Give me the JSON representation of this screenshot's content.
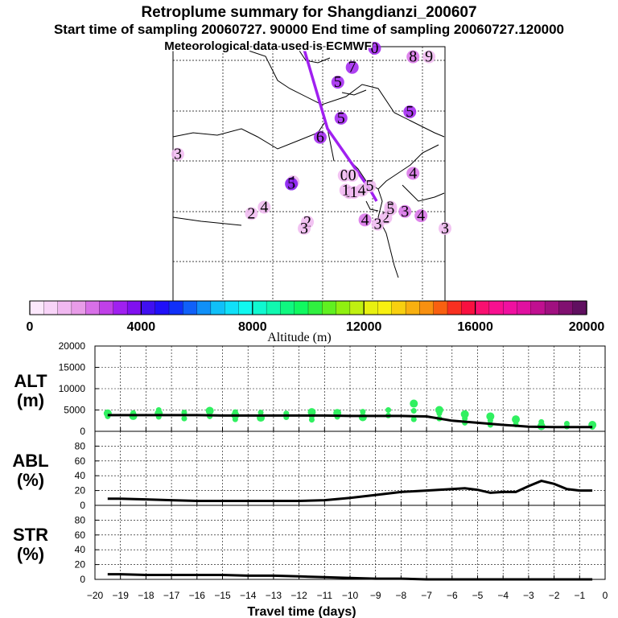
{
  "title": {
    "line1": "Retroplume summary for Shangdianzi_200607",
    "line2": "Start time of sampling 20060727. 90000     End time of sampling 20060727.120000",
    "line3": "Meteorological data used is ECMWF"
  },
  "colorbar": {
    "label": "Altitude  (m)",
    "min": 0,
    "max": 20000,
    "ticks": [
      0,
      4000,
      8000,
      12000,
      16000,
      20000
    ],
    "colors": [
      "#fce8fc",
      "#f8d4f8",
      "#f0b8f0",
      "#e89ce8",
      "#d870e8",
      "#c040e8",
      "#a020f0",
      "#8010f0",
      "#4010f0",
      "#2010f8",
      "#1030f8",
      "#1060f8",
      "#1090f8",
      "#10c0f8",
      "#10e0f8",
      "#10f8f0",
      "#10f8d0",
      "#10f8b0",
      "#10f880",
      "#10f860",
      "#30f040",
      "#60f020",
      "#90f010",
      "#c0f010",
      "#e8f010",
      "#f8f010",
      "#f8d010",
      "#f8b010",
      "#f89010",
      "#f86010",
      "#f83020",
      "#f81040",
      "#f81070",
      "#f81090",
      "#f010a0",
      "#e010a0",
      "#c01090",
      "#a01080",
      "#801070",
      "#601060"
    ]
  },
  "map": {
    "markers": [
      {
        "label": "0",
        "lon": 118.6,
        "lat": 48.0,
        "color": "#a020f0"
      },
      {
        "label": "1",
        "lon": 117.0,
        "lat": 41.2,
        "color": "#f0b8f0"
      },
      {
        "label": "1",
        "lon": 113.5,
        "lat": 41.7,
        "color": "#f0b8f0"
      },
      {
        "label": "1",
        "lon": 116.8,
        "lat": 41.3,
        "color": "#f0b8f0"
      },
      {
        "label": "1",
        "lon": 117.3,
        "lat": 41.2,
        "color": "#f0b8f0"
      },
      {
        "label": "2",
        "lon": 110.9,
        "lat": 40.2,
        "color": "#f0b8f0"
      },
      {
        "label": "2",
        "lon": 114.4,
        "lat": 39.8,
        "color": "#f0b8f0"
      },
      {
        "label": "2",
        "lon": 119.6,
        "lat": 40.5,
        "color": "#f0b8f0"
      },
      {
        "label": "2",
        "lon": 119.3,
        "lat": 40.0,
        "color": "#f0b8f0"
      },
      {
        "label": "3",
        "lon": 106.3,
        "lat": 43.0,
        "color": "#f0b8f0"
      },
      {
        "label": "3",
        "lon": 114.2,
        "lat": 39.5,
        "color": "#f0b8f0"
      },
      {
        "label": "3",
        "lon": 120.5,
        "lat": 40.3,
        "color": "#d870e8"
      },
      {
        "label": "3",
        "lon": 123.0,
        "lat": 39.5,
        "color": "#f0b8f0"
      },
      {
        "label": "3",
        "lon": 118.8,
        "lat": 39.7,
        "color": "#f0b8f0"
      },
      {
        "label": "4",
        "lon": 111.7,
        "lat": 40.5,
        "color": "#f0b8f0"
      },
      {
        "label": "4",
        "lon": 118.0,
        "lat": 39.9,
        "color": "#d870e8"
      },
      {
        "label": "4",
        "lon": 121.5,
        "lat": 40.1,
        "color": "#d870e8"
      },
      {
        "label": "4",
        "lon": 121.0,
        "lat": 42.1,
        "color": "#d870e8"
      },
      {
        "label": "4",
        "lon": 117.8,
        "lat": 41.3,
        "color": "#f0b8f0"
      },
      {
        "label": "5",
        "lon": 119.6,
        "lat": 40.4,
        "color": "#f0b8f0"
      },
      {
        "label": "5",
        "lon": 113.4,
        "lat": 41.6,
        "color": "#8010f0"
      },
      {
        "label": "5",
        "lon": 120.8,
        "lat": 45.0,
        "color": "#a020f0"
      },
      {
        "label": "5",
        "lon": 116.3,
        "lat": 46.4,
        "color": "#a020f0"
      },
      {
        "label": "5",
        "lon": 118.3,
        "lat": 41.5,
        "color": "#f0b8f0"
      },
      {
        "label": "5",
        "lon": 116.5,
        "lat": 44.7,
        "color": "#a020f0"
      },
      {
        "label": "6",
        "lon": 115.2,
        "lat": 43.8,
        "color": "#a020f0"
      },
      {
        "label": "7",
        "lon": 117.2,
        "lat": 47.1,
        "color": "#a020f0"
      },
      {
        "label": "8",
        "lon": 121.0,
        "lat": 47.6,
        "color": "#d870e8"
      },
      {
        "label": "9",
        "lon": 122.0,
        "lat": 47.6,
        "color": "#f0b8f0"
      },
      {
        "label": "0",
        "lon": 116.7,
        "lat": 42.0,
        "color": "#f0b8f0"
      },
      {
        "label": "0",
        "lon": 117.2,
        "lat": 42.0,
        "color": "#f0b8f0"
      }
    ],
    "path_color": "#a020f0"
  },
  "chart_data": [
    {
      "type": "scatter",
      "panel": "ALT",
      "ylabel_line1": "ALT",
      "ylabel_line2": "(m)",
      "ylim": [
        0,
        20000
      ],
      "yticks": [
        0,
        5000,
        10000,
        15000,
        20000
      ],
      "xlim": [
        -20,
        0
      ],
      "mean_line": {
        "x": [
          -19.5,
          -19,
          -18,
          -17,
          -16,
          -15,
          -14,
          -13,
          -12,
          -11,
          -10,
          -9,
          -8,
          -7,
          -6,
          -5,
          -4,
          -3,
          -2,
          -1,
          -0.5
        ],
        "y": [
          3800,
          3800,
          3800,
          3800,
          3800,
          3700,
          3700,
          3700,
          3700,
          3700,
          3600,
          3600,
          3600,
          3500,
          2500,
          2000,
          1500,
          1100,
          1000,
          1000,
          1000
        ]
      },
      "points": [
        {
          "x": -19.5,
          "y": 4200
        },
        {
          "x": -19.5,
          "y": 3500
        },
        {
          "x": -18.5,
          "y": 4300
        },
        {
          "x": -18.5,
          "y": 3600
        },
        {
          "x": -17.5,
          "y": 5000
        },
        {
          "x": -17.5,
          "y": 3400
        },
        {
          "x": -17.5,
          "y": 4200
        },
        {
          "x": -16.5,
          "y": 4400
        },
        {
          "x": -16.5,
          "y": 3000
        },
        {
          "x": -15.5,
          "y": 4800
        },
        {
          "x": -15.5,
          "y": 3500
        },
        {
          "x": -14.5,
          "y": 4500
        },
        {
          "x": -14.5,
          "y": 3800
        },
        {
          "x": -14.5,
          "y": 2800
        },
        {
          "x": -13.5,
          "y": 4400
        },
        {
          "x": -13.5,
          "y": 3200
        },
        {
          "x": -12.5,
          "y": 4200
        },
        {
          "x": -12.5,
          "y": 3300
        },
        {
          "x": -11.5,
          "y": 4500
        },
        {
          "x": -11.5,
          "y": 3500
        },
        {
          "x": -11.5,
          "y": 2700
        },
        {
          "x": -10.5,
          "y": 4300
        },
        {
          "x": -10.5,
          "y": 3400
        },
        {
          "x": -9.5,
          "y": 4600
        },
        {
          "x": -9.5,
          "y": 3300
        },
        {
          "x": -8.5,
          "y": 5000
        },
        {
          "x": -8.5,
          "y": 3700
        },
        {
          "x": -7.5,
          "y": 6500
        },
        {
          "x": -7.5,
          "y": 4800
        },
        {
          "x": -7.5,
          "y": 2800
        },
        {
          "x": -6.5,
          "y": 5000
        },
        {
          "x": -6.5,
          "y": 4200
        },
        {
          "x": -6.5,
          "y": 3000
        },
        {
          "x": -5.5,
          "y": 4000
        },
        {
          "x": -5.5,
          "y": 3000
        },
        {
          "x": -5.5,
          "y": 2000
        },
        {
          "x": -4.5,
          "y": 3500
        },
        {
          "x": -4.5,
          "y": 2500
        },
        {
          "x": -4.5,
          "y": 1500
        },
        {
          "x": -3.5,
          "y": 2800
        },
        {
          "x": -3.5,
          "y": 1600
        },
        {
          "x": -2.5,
          "y": 2200
        },
        {
          "x": -2.5,
          "y": 1200
        },
        {
          "x": -1.5,
          "y": 1800
        },
        {
          "x": -1.5,
          "y": 1100
        },
        {
          "x": -0.5,
          "y": 1500
        },
        {
          "x": -0.5,
          "y": 1000
        }
      ],
      "point_color": "#30f060"
    },
    {
      "type": "line",
      "panel": "ABL",
      "ylabel_line1": "ABL",
      "ylabel_line2": "(%)",
      "ylim": [
        0,
        100
      ],
      "yticks": [
        0,
        20,
        40,
        60,
        80
      ],
      "xlim": [
        -20,
        0
      ],
      "x": [
        -19.5,
        -19,
        -18,
        -17,
        -16,
        -15,
        -14,
        -13,
        -12,
        -11,
        -10,
        -9,
        -8,
        -7,
        -6,
        -5.5,
        -5,
        -4.5,
        -4,
        -3.5,
        -3,
        -2.5,
        -2,
        -1.5,
        -1,
        -0.5
      ],
      "y": [
        9,
        9,
        8,
        7,
        6,
        6,
        6,
        6,
        6,
        7,
        10,
        14,
        18,
        20,
        22,
        23,
        21,
        17,
        18,
        18,
        26,
        33,
        29,
        22,
        20,
        20
      ]
    },
    {
      "type": "line",
      "panel": "STR",
      "ylabel_line1": "STR",
      "ylabel_line2": "(%)",
      "ylim": [
        0,
        100
      ],
      "yticks": [
        0,
        20,
        40,
        60,
        80
      ],
      "xlim": [
        -20,
        0
      ],
      "x": [
        -19.5,
        -19,
        -18,
        -17,
        -16,
        -15,
        -14,
        -13,
        -12,
        -11,
        -10,
        -9,
        -8,
        -7,
        -6,
        -5,
        -4,
        -3,
        -2,
        -1,
        -0.5
      ],
      "y": [
        7,
        7,
        6,
        6,
        6,
        6,
        5,
        5,
        4,
        3,
        2,
        1,
        1,
        0,
        0,
        0,
        0,
        0,
        0,
        0,
        0
      ],
      "xlabel": "Travel time (days)",
      "xticks": [
        -20,
        -19,
        -18,
        -17,
        -16,
        -15,
        -14,
        -13,
        -12,
        -11,
        -10,
        -9,
        -8,
        -7,
        -6,
        -5,
        -4,
        -3,
        -2,
        -1,
        0
      ]
    }
  ]
}
